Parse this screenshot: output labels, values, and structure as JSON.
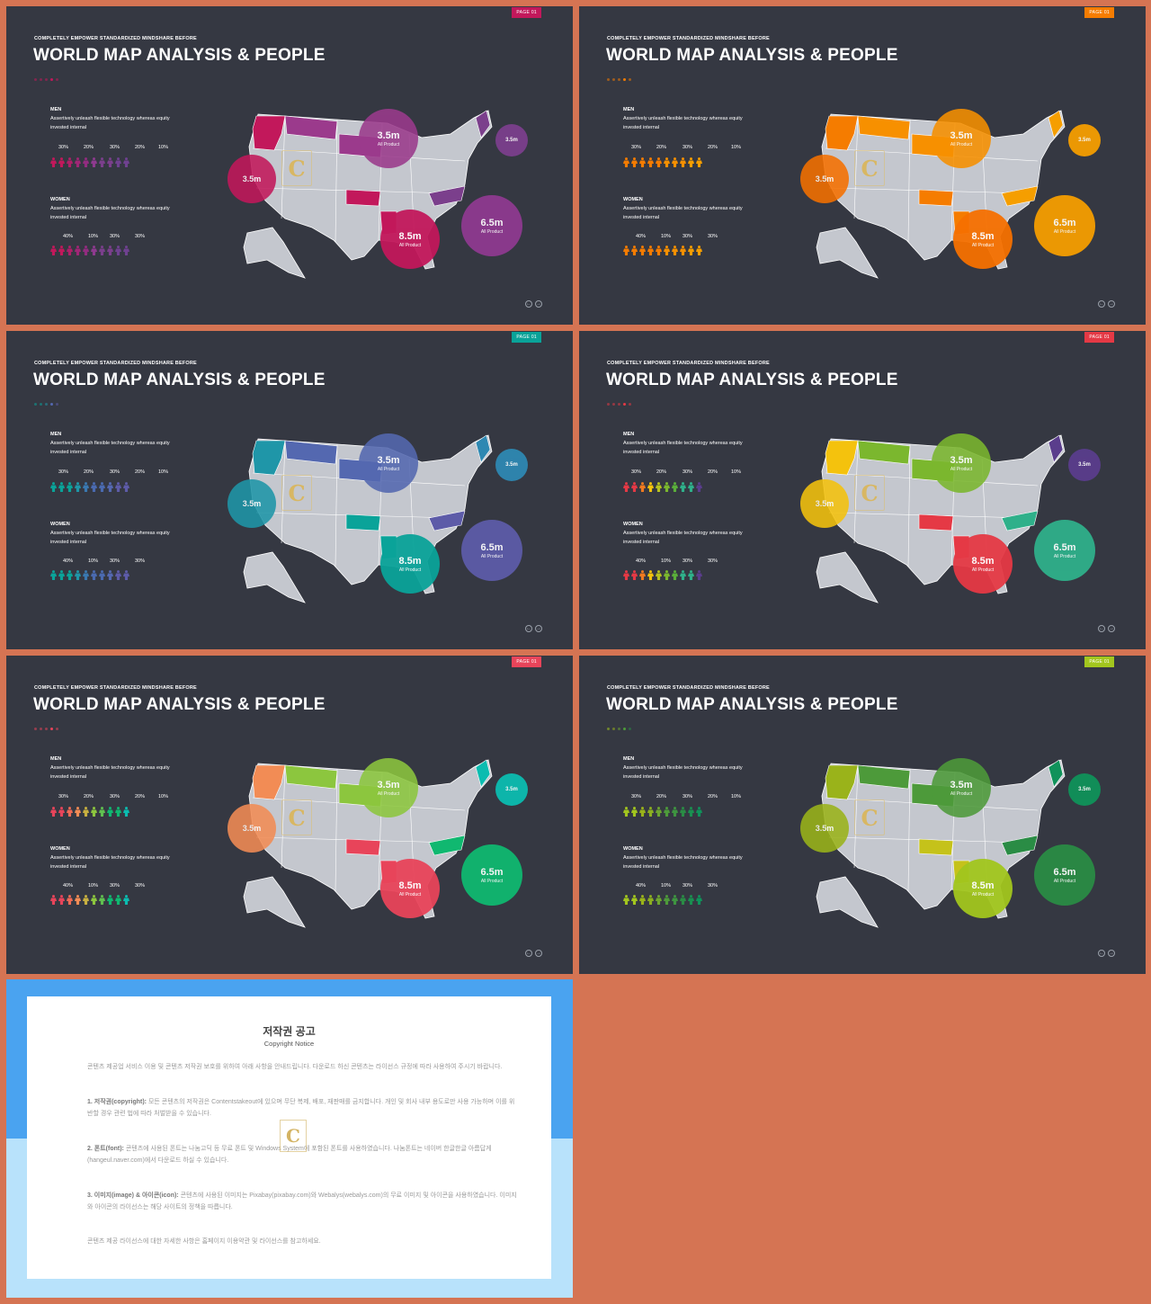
{
  "slides": [
    {
      "page_tag": "PAGE 01",
      "subtitle": "COMPLETELY  EMPOWER  STANDARDIZED  MINDSHARE  BEFORE",
      "title": "WORLD MAP ANALYSIS & PEOPLE",
      "men": {
        "label": "MEN",
        "desc": "Assertively unleash flexible technology whereas equity invested internal",
        "percents": [
          "30%",
          "20%",
          "30%",
          "20%",
          "10%"
        ]
      },
      "women": {
        "label": "WOMEN",
        "desc": "Assertively unleash flexible technology whereas equity invested internal",
        "percents": [
          "40%",
          "10%",
          "30%",
          "30%"
        ]
      },
      "bubbles": [
        {
          "value": "3.5m",
          "label": "All Product"
        },
        {
          "value": "3.5m",
          "label": ""
        },
        {
          "value": "3.5m",
          "label": ""
        },
        {
          "value": "6.5m",
          "label": "All Product"
        },
        {
          "value": "8.5m",
          "label": "All Product"
        }
      ],
      "nav": {
        "prev": "←",
        "next": "→"
      }
    },
    {
      "page_tag": "PAGE 01",
      "subtitle": "COMPLETELY  EMPOWER  STANDARDIZED  MINDSHARE  BEFORE",
      "title": "WORLD MAP ANALYSIS & PEOPLE",
      "men": {
        "label": "MEN",
        "desc": "Assertively unleash flexible technology whereas equity invested internal",
        "percents": [
          "30%",
          "20%",
          "30%",
          "20%",
          "10%"
        ]
      },
      "women": {
        "label": "WOMEN",
        "desc": "Assertively unleash flexible technology whereas equity invested internal",
        "percents": [
          "40%",
          "10%",
          "30%",
          "30%"
        ]
      },
      "bubbles": [
        {
          "value": "3.5m",
          "label": "All Product"
        },
        {
          "value": "3.5m",
          "label": ""
        },
        {
          "value": "3.5m",
          "label": ""
        },
        {
          "value": "6.5m",
          "label": "All Product"
        },
        {
          "value": "8.5m",
          "label": "All Product"
        }
      ],
      "nav": {
        "prev": "←",
        "next": "→"
      }
    },
    {
      "page_tag": "PAGE 01",
      "subtitle": "COMPLETELY  EMPOWER  STANDARDIZED  MINDSHARE  BEFORE",
      "title": "WORLD MAP ANALYSIS & PEOPLE",
      "men": {
        "label": "MEN",
        "desc": "Assertively unleash flexible technology whereas equity invested internal",
        "percents": [
          "30%",
          "20%",
          "30%",
          "20%",
          "10%"
        ]
      },
      "women": {
        "label": "WOMEN",
        "desc": "Assertively unleash flexible technology whereas equity invested internal",
        "percents": [
          "40%",
          "10%",
          "30%",
          "30%"
        ]
      },
      "bubbles": [
        {
          "value": "3.5m",
          "label": "All Product"
        },
        {
          "value": "3.5m",
          "label": ""
        },
        {
          "value": "3.5m",
          "label": ""
        },
        {
          "value": "6.5m",
          "label": "All Product"
        },
        {
          "value": "8.5m",
          "label": "All Product"
        }
      ],
      "nav": {
        "prev": "←",
        "next": "→"
      }
    },
    {
      "page_tag": "PAGE 01",
      "subtitle": "COMPLETELY  EMPOWER  STANDARDIZED  MINDSHARE  BEFORE",
      "title": "WORLD MAP ANALYSIS & PEOPLE",
      "men": {
        "label": "MEN",
        "desc": "Assertively unleash flexible technology whereas equity invested internal",
        "percents": [
          "30%",
          "20%",
          "30%",
          "20%",
          "10%"
        ]
      },
      "women": {
        "label": "WOMEN",
        "desc": "Assertively unleash flexible technology whereas equity invested internal",
        "percents": [
          "40%",
          "10%",
          "30%",
          "30%"
        ]
      },
      "bubbles": [
        {
          "value": "3.5m",
          "label": "All Product"
        },
        {
          "value": "3.5m",
          "label": ""
        },
        {
          "value": "3.5m",
          "label": ""
        },
        {
          "value": "6.5m",
          "label": "All Product"
        },
        {
          "value": "8.5m",
          "label": "All Product"
        }
      ],
      "nav": {
        "prev": "←",
        "next": "→"
      }
    },
    {
      "page_tag": "PAGE 01",
      "subtitle": "COMPLETELY  EMPOWER  STANDARDIZED  MINDSHARE  BEFORE",
      "title": "WORLD MAP ANALYSIS & PEOPLE",
      "men": {
        "label": "MEN",
        "desc": "Assertively unleash flexible technology whereas equity invested internal",
        "percents": [
          "30%",
          "20%",
          "30%",
          "20%",
          "10%"
        ]
      },
      "women": {
        "label": "WOMEN",
        "desc": "Assertively unleash flexible technology whereas equity invested internal",
        "percents": [
          "40%",
          "10%",
          "30%",
          "30%"
        ]
      },
      "bubbles": [
        {
          "value": "3.5m",
          "label": "All Product"
        },
        {
          "value": "3.5m",
          "label": ""
        },
        {
          "value": "3.5m",
          "label": ""
        },
        {
          "value": "6.5m",
          "label": "All Product"
        },
        {
          "value": "8.5m",
          "label": "All Product"
        }
      ],
      "nav": {
        "prev": "←",
        "next": "→"
      }
    },
    {
      "page_tag": "PAGE 01",
      "subtitle": "COMPLETELY  EMPOWER  STANDARDIZED  MINDSHARE  BEFORE",
      "title": "WORLD MAP ANALYSIS & PEOPLE",
      "men": {
        "label": "MEN",
        "desc": "Assertively unleash flexible technology whereas equity invested internal",
        "percents": [
          "30%",
          "20%",
          "30%",
          "20%",
          "10%"
        ]
      },
      "women": {
        "label": "WOMEN",
        "desc": "Assertively unleash flexible technology whereas equity invested internal",
        "percents": [
          "40%",
          "10%",
          "30%",
          "30%"
        ]
      },
      "bubbles": [
        {
          "value": "3.5m",
          "label": "All Product"
        },
        {
          "value": "3.5m",
          "label": ""
        },
        {
          "value": "3.5m",
          "label": ""
        },
        {
          "value": "6.5m",
          "label": "All Product"
        },
        {
          "value": "8.5m",
          "label": "All Product"
        }
      ],
      "nav": {
        "prev": "←",
        "next": "→"
      }
    }
  ],
  "themes": [
    {
      "tag": "#c2185b",
      "bubbles": [
        "#9b3a8c",
        "#c2185b",
        "#7b3f8c",
        "#8e3a8f",
        "#c2185b"
      ],
      "men": [
        "#c2185b",
        "#c2185b",
        "#b01f68",
        "#a02676",
        "#922c80",
        "#8e3a8f",
        "#7b3f8c",
        "#7b3f8c",
        "#6f4190",
        "#6f4190"
      ],
      "women": [
        "#c2185b",
        "#c2185b",
        "#b01f68",
        "#a02676",
        "#922c80",
        "#8e3a8f",
        "#7b3f8c",
        "#7b3f8c",
        "#6f4190",
        "#6f4190"
      ],
      "states": [
        "#c2185b",
        "#9b3a8c",
        "#9b3a8c",
        "#c2185b",
        "#c2185b",
        "#7b3f8c",
        "#7b3f8c"
      ],
      "dots": [
        "#c2185b",
        "#c2185b",
        "#c2185b",
        "#c2185b",
        "#c2185b"
      ]
    },
    {
      "tag": "#f57c00",
      "bubbles": [
        "#f79000",
        "#f57000",
        "#f59e00",
        "#f59e00",
        "#f57000"
      ],
      "men": [
        "#f57c00",
        "#f57c00",
        "#f57c00",
        "#f57c00",
        "#f57c00",
        "#f59000",
        "#f59000",
        "#f59000",
        "#f59e00",
        "#f59e00"
      ],
      "women": [
        "#f57c00",
        "#f57c00",
        "#f57c00",
        "#f57c00",
        "#f57c00",
        "#f59000",
        "#f59000",
        "#f59000",
        "#f59e00",
        "#f59e00"
      ],
      "states": [
        "#f57c00",
        "#f79000",
        "#f79000",
        "#f57c00",
        "#f57c00",
        "#f59e00",
        "#f59e00"
      ],
      "dots": [
        "#f57c00",
        "#f57c00",
        "#f57c00",
        "#f57c00",
        "#f57c00"
      ]
    },
    {
      "tag": "#0aa399",
      "bubbles": [
        "#5468b0",
        "#1f96a8",
        "#2e88b2",
        "#5d5ba8",
        "#0aa399"
      ],
      "men": [
        "#0aa399",
        "#0aa399",
        "#0aa399",
        "#1f96a8",
        "#3a78b0",
        "#4a6ab0",
        "#4a6ab0",
        "#5468b0",
        "#5d5ba8",
        "#5d5ba8"
      ],
      "women": [
        "#0aa399",
        "#0aa399",
        "#0aa399",
        "#1f96a8",
        "#3a78b0",
        "#4a6ab0",
        "#4a6ab0",
        "#5468b0",
        "#5d5ba8",
        "#5d5ba8"
      ],
      "states": [
        "#1f96a8",
        "#5468b0",
        "#5468b0",
        "#0aa399",
        "#0aa399",
        "#5d5ba8",
        "#2e88b2"
      ],
      "dots": [
        "#0aa399",
        "#0aa399",
        "#1f96a8",
        "#5468b0",
        "#5d5ba8"
      ]
    },
    {
      "tag": "#e53945",
      "bubbles": [
        "#7bb72e",
        "#f4c20d",
        "#5a3d8c",
        "#2fb08a",
        "#e53945"
      ],
      "men": [
        "#e53945",
        "#e53945",
        "#f07a20",
        "#f4c20d",
        "#b7c220",
        "#7bb72e",
        "#5aae3a",
        "#2fb08a",
        "#2fb08a",
        "#5a3d8c"
      ],
      "women": [
        "#e53945",
        "#e53945",
        "#f07a20",
        "#f4c20d",
        "#b7c220",
        "#7bb72e",
        "#5aae3a",
        "#2fb08a",
        "#2fb08a",
        "#5a3d8c"
      ],
      "states": [
        "#f4c20d",
        "#7bb72e",
        "#7bb72e",
        "#e53945",
        "#e53945",
        "#2fb08a",
        "#5a3d8c"
      ],
      "dots": [
        "#e53945",
        "#e53945",
        "#e53945",
        "#e53945",
        "#e53945"
      ]
    },
    {
      "tag": "#e8445a",
      "bubbles": [
        "#8cc63e",
        "#f28c55",
        "#0bbcb0",
        "#10b870",
        "#e8445a"
      ],
      "men": [
        "#e8445a",
        "#e8445a",
        "#f06a55",
        "#f28c55",
        "#c8b040",
        "#8cc63e",
        "#60c050",
        "#10b870",
        "#10b870",
        "#0bbcb0"
      ],
      "women": [
        "#e8445a",
        "#e8445a",
        "#f06a55",
        "#f28c55",
        "#c8b040",
        "#8cc63e",
        "#60c050",
        "#10b870",
        "#10b870",
        "#0bbcb0"
      ],
      "states": [
        "#f28c55",
        "#8cc63e",
        "#8cc63e",
        "#e8445a",
        "#e8445a",
        "#10b870",
        "#0bbcb0"
      ],
      "dots": [
        "#e8445a",
        "#e8445a",
        "#e8445a",
        "#e8445a",
        "#e8445a"
      ]
    },
    {
      "tag": "#a2c61e",
      "bubbles": [
        "#4d9a3a",
        "#9ab31a",
        "#10925a",
        "#2a8c45",
        "#a2c61e"
      ],
      "men": [
        "#a2c61e",
        "#a2c61e",
        "#9ab31a",
        "#8caf20",
        "#6ea530",
        "#4d9a3a",
        "#3e9540",
        "#2a8c45",
        "#1a8f50",
        "#10925a"
      ],
      "women": [
        "#a2c61e",
        "#a2c61e",
        "#9ab31a",
        "#8caf20",
        "#6ea530",
        "#4d9a3a",
        "#3e9540",
        "#2a8c45",
        "#1a8f50",
        "#10925a"
      ],
      "states": [
        "#9ab31a",
        "#4d9a3a",
        "#4d9a3a",
        "#c5c21a",
        "#c5c21a",
        "#2a8c45",
        "#10925a"
      ],
      "dots": [
        "#a2c61e",
        "#9ab31a",
        "#6ea530",
        "#4d9a3a",
        "#2a8c45"
      ]
    }
  ],
  "watermark": {
    "letter": "C"
  },
  "copyright": {
    "title": "저작권 공고",
    "subtitle": "Copyright Notice",
    "p1": "콘텐츠 제공업 서비스 이용 및 콘텐츠 저작권 보호를 위하여 아래 사항을 안내드립니다. 다운로드 하신 콘텐츠는 라이선스 규정에 따라 사용하여 주시기 바랍니다.",
    "p2_head": "1. 저작권(copyright):",
    "p2": "모든 콘텐츠의 저작권은 Contentstakeout에 있으며 무단 복제, 배포, 재판매를 금지합니다. 개인 및 회사 내부 용도로만 사용 가능하며 이를 위반할 경우 관련 법에 따라 처벌받을 수 있습니다.",
    "p3_head": "2. 폰트(font):",
    "p3": "콘텐츠에 사용된 폰트는 나눔고딕 등 무료 폰트 및 Windows System에 포함된 폰트를 사용하였습니다. 나눔폰트는 네이버 한글한글 아름답게 (hangeul.naver.com)에서 다운로드 하실 수 있습니다.",
    "p4_head": "3. 이미지(image) & 아이콘(icon):",
    "p4": "콘텐츠에 사용된 이미지는 Pixabay(pixabay.com)와 Webalys(webalys.com)의 무료 이미지 및 아이콘을 사용하였습니다. 이미지와 아이콘의 라이선스는 해당 사이트의 정책을 따릅니다.",
    "p5": "콘텐츠 제공 라이선스에 대한 자세한 사항은 홈페이지 이용약관 및 라이선스를 참고하세요."
  }
}
